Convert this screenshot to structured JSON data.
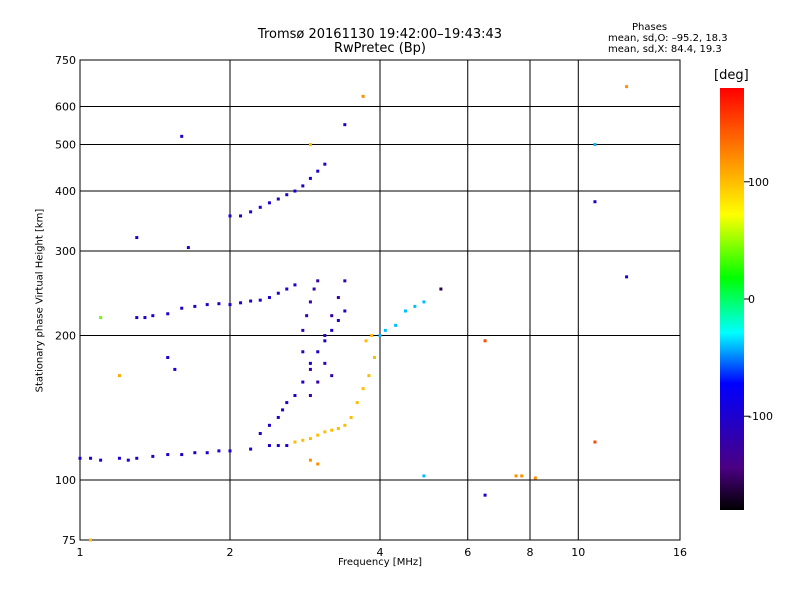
{
  "header": {
    "title_line1": "Tromsø 20161130 19:42:00–19:43:43",
    "title_line2": "RwPretec (Bp)",
    "stats_heading": "Phases",
    "stats_o": "mean, sd,O: –95.2, 18.3",
    "stats_x": "mean, sd,X: 84.4, 19.3"
  },
  "chart_data": {
    "type": "scatter",
    "title": "Tromsø 20161130 19:42:00–19:43:43",
    "subtitle": "RwPretec (Bp)",
    "xlabel": "Frequency [MHz]",
    "ylabel": "Stationary phase Virtual Height [km]",
    "x_scale": "log",
    "y_scale": "log",
    "xlim": [
      1,
      16
    ],
    "ylim": [
      75,
      750
    ],
    "x_ticks": [
      1,
      2,
      4,
      6,
      8,
      10,
      16
    ],
    "y_ticks": [
      75,
      100,
      200,
      300,
      400,
      500,
      600,
      750
    ],
    "grid": true,
    "colorbar": {
      "label": "[deg]",
      "min": -180,
      "max": 180,
      "ticks": [
        -100,
        0,
        100
      ]
    },
    "series": [
      {
        "points": [
          [
            1.0,
            111,
            -100
          ],
          [
            1.05,
            111,
            -100
          ],
          [
            1.1,
            110,
            -100
          ],
          [
            1.2,
            111,
            -100
          ],
          [
            1.25,
            110,
            -100
          ],
          [
            1.3,
            111,
            -100
          ],
          [
            1.4,
            112,
            -100
          ],
          [
            1.5,
            113,
            -100
          ],
          [
            1.6,
            113,
            -100
          ],
          [
            1.7,
            114,
            -100
          ],
          [
            1.8,
            114,
            -100
          ],
          [
            1.9,
            115,
            -100
          ],
          [
            2.0,
            115,
            -100
          ],
          [
            2.2,
            116,
            -100
          ],
          [
            2.4,
            118,
            -100
          ],
          [
            2.5,
            118,
            -100
          ],
          [
            2.6,
            118,
            -100
          ]
        ]
      },
      {
        "points": [
          [
            1.6,
            228,
            -100
          ],
          [
            1.7,
            230,
            -100
          ],
          [
            1.8,
            232,
            -100
          ],
          [
            1.9,
            233,
            -100
          ],
          [
            2.0,
            232,
            -100
          ],
          [
            2.1,
            234,
            -100
          ],
          [
            2.2,
            236,
            -100
          ],
          [
            2.3,
            237,
            -100
          ],
          [
            2.4,
            240,
            -100
          ],
          [
            2.5,
            245,
            -100
          ],
          [
            2.6,
            250,
            -100
          ],
          [
            2.7,
            255,
            -100
          ]
        ]
      },
      {
        "points": [
          [
            1.3,
            218,
            -100
          ],
          [
            1.35,
            218,
            -100
          ],
          [
            1.4,
            220,
            -100
          ],
          [
            1.5,
            222,
            -100
          ]
        ]
      },
      {
        "points": [
          [
            2.0,
            355,
            -100
          ],
          [
            2.1,
            355,
            -100
          ],
          [
            2.2,
            362,
            -100
          ],
          [
            2.3,
            370,
            -100
          ],
          [
            2.4,
            378,
            -100
          ],
          [
            2.5,
            385,
            -100
          ],
          [
            2.6,
            393,
            -100
          ],
          [
            2.7,
            400,
            -100
          ],
          [
            2.8,
            410,
            -100
          ],
          [
            2.9,
            425,
            -100
          ],
          [
            3.0,
            440,
            -100
          ],
          [
            3.1,
            455,
            -100
          ]
        ]
      },
      {
        "points": [
          [
            2.8,
            205,
            -120
          ],
          [
            2.85,
            220,
            -120
          ],
          [
            2.9,
            235,
            -120
          ],
          [
            2.95,
            250,
            -120
          ],
          [
            3.0,
            260,
            -120
          ],
          [
            2.8,
            185,
            -120
          ],
          [
            2.9,
            170,
            -120
          ],
          [
            3.0,
            160,
            -120
          ],
          [
            2.9,
            150,
            -120
          ],
          [
            3.1,
            200,
            -120
          ],
          [
            3.2,
            220,
            -120
          ],
          [
            3.3,
            240,
            -120
          ],
          [
            3.4,
            260,
            -120
          ],
          [
            3.1,
            175,
            -120
          ],
          [
            3.2,
            165,
            -120
          ]
        ]
      },
      {
        "points": [
          [
            2.3,
            125,
            -100
          ],
          [
            2.4,
            130,
            -100
          ],
          [
            2.5,
            135,
            -100
          ],
          [
            2.55,
            140,
            -100
          ],
          [
            2.6,
            145,
            -100
          ],
          [
            2.7,
            150,
            -100
          ],
          [
            2.8,
            160,
            -100
          ],
          [
            2.9,
            175,
            -100
          ],
          [
            3.0,
            185,
            -100
          ],
          [
            3.1,
            195,
            -100
          ],
          [
            3.2,
            205,
            -100
          ],
          [
            3.3,
            215,
            -100
          ],
          [
            3.4,
            225,
            -100
          ]
        ]
      },
      {
        "points": [
          [
            2.7,
            120,
            100
          ],
          [
            2.8,
            121,
            100
          ],
          [
            2.9,
            122,
            100
          ],
          [
            3.0,
            124,
            100
          ],
          [
            3.1,
            126,
            100
          ],
          [
            3.2,
            127,
            100
          ],
          [
            3.3,
            128,
            100
          ],
          [
            3.4,
            130,
            100
          ],
          [
            3.5,
            135,
            100
          ],
          [
            3.6,
            145,
            100
          ],
          [
            3.7,
            155,
            100
          ],
          [
            3.8,
            165,
            100
          ],
          [
            3.9,
            180,
            100
          ],
          [
            3.75,
            195,
            100
          ],
          [
            3.85,
            200,
            100
          ]
        ]
      },
      {
        "points": [
          [
            4.0,
            200,
            -40
          ],
          [
            4.1,
            205,
            -40
          ],
          [
            4.3,
            210,
            -40
          ],
          [
            4.5,
            225,
            -40
          ],
          [
            4.7,
            230,
            -40
          ],
          [
            4.9,
            235,
            -40
          ]
        ]
      },
      {
        "points": [
          [
            1.6,
            520,
            -100
          ],
          [
            1.65,
            305,
            -100
          ],
          [
            1.3,
            320,
            -100
          ],
          [
            1.1,
            218,
            40
          ],
          [
            1.2,
            165,
            110
          ],
          [
            1.5,
            180,
            -100
          ],
          [
            1.55,
            170,
            -100
          ],
          [
            2.9,
            500,
            100
          ],
          [
            3.4,
            550,
            -100
          ],
          [
            3.7,
            630,
            120
          ],
          [
            5.3,
            250,
            -160
          ],
          [
            6.5,
            195,
            150
          ],
          [
            6.5,
            93,
            -100
          ],
          [
            7.5,
            102,
            120
          ],
          [
            7.7,
            102,
            120
          ],
          [
            8.2,
            101,
            120
          ],
          [
            10.8,
            500,
            -40
          ],
          [
            10.8,
            380,
            -100
          ],
          [
            10.8,
            120,
            150
          ],
          [
            12.5,
            660,
            120
          ],
          [
            12.5,
            265,
            -100
          ],
          [
            4.9,
            102,
            -40
          ],
          [
            2.9,
            110,
            120
          ],
          [
            3.0,
            108,
            120
          ],
          [
            1.05,
            75,
            100
          ]
        ]
      }
    ]
  }
}
